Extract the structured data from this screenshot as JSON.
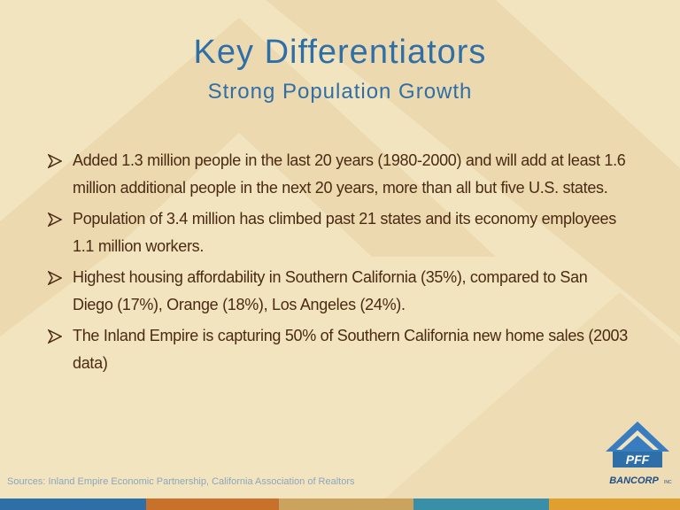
{
  "header": {
    "title": "Key Differentiators",
    "subtitle": "Strong Population Growth"
  },
  "bullets": [
    "Added 1.3 million people in the last 20 years (1980-2000) and will add at least 1.6 million additional people in the next 20 years, more than all but five U.S. states.",
    "Population of 3.4 million has climbed past 21 states and its economy employees 1.1 million workers.",
    "Highest housing affordability in Southern California (35%), compared to San Diego (17%), Orange (18%), Los Angeles (24%).",
    "The Inland Empire is capturing 50% of Southern California new home sales (2003 data)"
  ],
  "footer": {
    "sources": "Sources: Inland Empire Economic Partnership, California Association of Realtors",
    "logo": {
      "mark": "PFF",
      "name": "BANCORP",
      "suffix": "INC"
    }
  }
}
